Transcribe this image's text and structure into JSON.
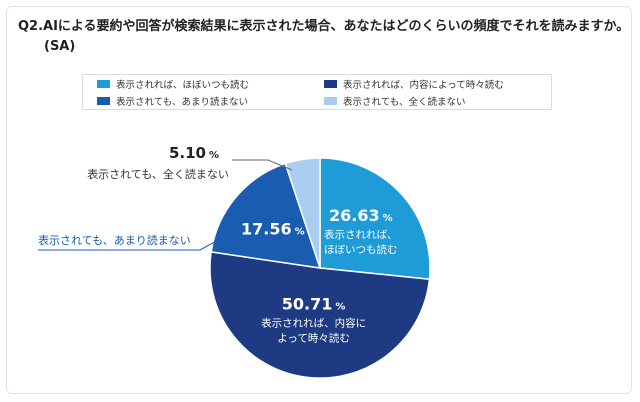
{
  "question": {
    "line1": "Q2.AIによる要約や回答が検索結果に表示された場合、あなたはどのくらいの頻度でそれを読みますか。",
    "line2": "(SA)"
  },
  "legend": [
    {
      "label": "表示されれば、ほぼいつも読む",
      "color": "#1f9bd7"
    },
    {
      "label": "表示されれば、内容によって時々読む",
      "color": "#1d3a82"
    },
    {
      "label": "表示されても、あまり読まない",
      "color": "#1a5cb0"
    },
    {
      "label": "表示されても、全く読まない",
      "color": "#a8cdee"
    }
  ],
  "chart_data": {
    "type": "pie",
    "unit": "%",
    "slices": [
      {
        "label": "表示されれば、ほぼいつも読む",
        "value": 26.63,
        "color": "#1f9bd7",
        "label_lines": [
          "表示されれば、",
          "ほぼいつも読む"
        ]
      },
      {
        "label": "表示されれば、内容によって時々読む",
        "value": 50.71,
        "color": "#1d3a82",
        "label_lines": [
          "表示されれば、内容に",
          "よって時々読む"
        ]
      },
      {
        "label": "表示されても、あまり読まない",
        "value": 17.56,
        "color": "#1a5cb0",
        "label_lines": []
      },
      {
        "label": "表示されても、全く読まない",
        "value": 5.1,
        "color": "#a8cdee",
        "label_lines": []
      }
    ],
    "external_labels": [
      {
        "text": "5.10",
        "unit": "%",
        "caption": "表示されても、全く読まない"
      },
      {
        "text": "17.56",
        "unit": "%",
        "caption": "表示されても、あまり読まない"
      }
    ]
  }
}
